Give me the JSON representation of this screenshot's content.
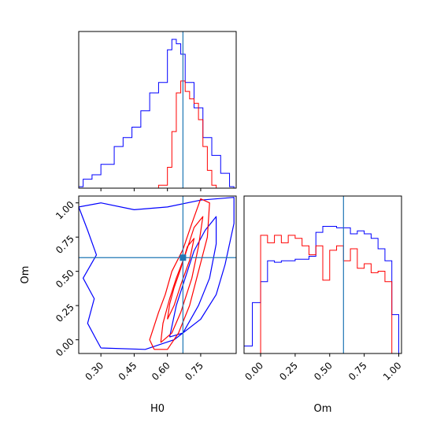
{
  "colors": {
    "posterior": "#0000ff",
    "likelihood": "#ff0000",
    "truth": "#1f77b4",
    "frame": "#000000"
  },
  "labels": {
    "x_h0": "H0",
    "x_om": "Om",
    "y_om": "Om"
  },
  "ticks": {
    "h0": [
      "0.30",
      "0.45",
      "0.60",
      "0.75"
    ],
    "om": [
      "0.00",
      "0.25",
      "0.50",
      "0.75",
      "1.00"
    ]
  },
  "chart_data": [
    {
      "type": "histogram",
      "panel": "H0 marginal",
      "xlabel": "H0",
      "xlim": [
        0.2,
        0.91
      ],
      "truth": 0.67,
      "bin_edges": [
        0.2,
        0.22,
        0.24,
        0.26,
        0.28,
        0.3,
        0.32,
        0.34,
        0.36,
        0.38,
        0.4,
        0.42,
        0.44,
        0.46,
        0.48,
        0.5,
        0.52,
        0.54,
        0.56,
        0.58,
        0.6,
        0.62,
        0.64,
        0.66,
        0.68,
        0.7,
        0.72,
        0.74,
        0.76,
        0.78,
        0.8,
        0.82,
        0.84,
        0.86,
        0.88,
        0.9
      ],
      "series": [
        {
          "color": "blue",
          "values": [
            0.01,
            0.06,
            0.06,
            0.09,
            0.09,
            0.16,
            0.16,
            0.16,
            0.28,
            0.28,
            0.34,
            0.34,
            0.41,
            0.41,
            0.52,
            0.52,
            0.64,
            0.64,
            0.71,
            0.71,
            0.93,
            1.0,
            0.97,
            0.9,
            0.71,
            0.71,
            0.54,
            0.54,
            0.34,
            0.34,
            0.22,
            0.22,
            0.1,
            0.1,
            0.01
          ]
        },
        {
          "color": "red",
          "values": [
            0,
            0,
            0,
            0,
            0,
            0,
            0,
            0,
            0,
            0,
            0,
            0,
            0,
            0,
            0,
            0,
            0,
            0,
            0.02,
            0.02,
            0.14,
            0.38,
            0.64,
            0.72,
            0.65,
            0.6,
            0.57,
            0.46,
            0.28,
            0.12,
            0.02,
            0,
            0,
            0,
            0
          ]
        }
      ]
    },
    {
      "type": "contour",
      "panel": "H0 vs Om joint",
      "xlabel": "H0",
      "ylabel": "Om",
      "xlim": [
        0.2,
        0.91
      ],
      "ylim": [
        -0.1,
        1.05
      ],
      "truth": {
        "x": 0.67,
        "y": 0.6
      },
      "series": [
        {
          "color": "blue",
          "level": "outer",
          "points": [
            [
              0.3,
              -0.06
            ],
            [
              0.5,
              -0.07
            ],
            [
              0.63,
              0.0
            ],
            [
              0.75,
              0.15
            ],
            [
              0.82,
              0.33
            ],
            [
              0.86,
              0.55
            ],
            [
              0.9,
              0.85
            ],
            [
              0.9,
              1.04
            ],
            [
              0.75,
              1.02
            ],
            [
              0.6,
              0.97
            ],
            [
              0.45,
              0.95
            ],
            [
              0.3,
              1.0
            ],
            [
              0.2,
              0.97
            ],
            [
              0.24,
              0.8
            ],
            [
              0.28,
              0.62
            ],
            [
              0.22,
              0.45
            ],
            [
              0.27,
              0.3
            ],
            [
              0.24,
              0.12
            ],
            [
              0.28,
              0.0
            ],
            [
              0.3,
              -0.06
            ]
          ]
        },
        {
          "color": "blue",
          "level": "inner",
          "points": [
            [
              0.61,
              0.02
            ],
            [
              0.67,
              0.05
            ],
            [
              0.74,
              0.25
            ],
            [
              0.79,
              0.45
            ],
            [
              0.82,
              0.7
            ],
            [
              0.82,
              0.9
            ],
            [
              0.77,
              0.8
            ],
            [
              0.72,
              0.65
            ],
            [
              0.68,
              0.45
            ],
            [
              0.64,
              0.25
            ],
            [
              0.61,
              0.02
            ]
          ]
        },
        {
          "color": "red",
          "level": "outer",
          "points": [
            [
              0.54,
              -0.07
            ],
            [
              0.6,
              -0.07
            ],
            [
              0.65,
              0.05
            ],
            [
              0.7,
              0.25
            ],
            [
              0.74,
              0.5
            ],
            [
              0.78,
              0.75
            ],
            [
              0.79,
              1.0
            ],
            [
              0.75,
              1.03
            ],
            [
              0.71,
              0.85
            ],
            [
              0.67,
              0.66
            ],
            [
              0.62,
              0.5
            ],
            [
              0.59,
              0.33
            ],
            [
              0.56,
              0.2
            ],
            [
              0.52,
              0.0
            ],
            [
              0.54,
              -0.07
            ]
          ]
        },
        {
          "color": "red",
          "level": "middle",
          "points": [
            [
              0.57,
              -0.02
            ],
            [
              0.62,
              0.05
            ],
            [
              0.66,
              0.2
            ],
            [
              0.71,
              0.45
            ],
            [
              0.74,
              0.68
            ],
            [
              0.76,
              0.9
            ],
            [
              0.72,
              0.82
            ],
            [
              0.68,
              0.62
            ],
            [
              0.64,
              0.45
            ],
            [
              0.61,
              0.3
            ],
            [
              0.58,
              0.12
            ],
            [
              0.57,
              -0.02
            ]
          ]
        },
        {
          "color": "red",
          "level": "inner",
          "points": [
            [
              0.6,
              0.15
            ],
            [
              0.63,
              0.25
            ],
            [
              0.66,
              0.4
            ],
            [
              0.7,
              0.58
            ],
            [
              0.72,
              0.74
            ],
            [
              0.69,
              0.68
            ],
            [
              0.66,
              0.52
            ],
            [
              0.63,
              0.38
            ],
            [
              0.61,
              0.26
            ],
            [
              0.6,
              0.15
            ]
          ]
        }
      ]
    },
    {
      "type": "histogram",
      "panel": "Om marginal",
      "xlabel": "Om",
      "xlim": [
        -0.12,
        1.02
      ],
      "truth": 0.6,
      "bin_edges": [
        -0.12,
        -0.06,
        0.0,
        0.05,
        0.1,
        0.15,
        0.2,
        0.25,
        0.3,
        0.35,
        0.4,
        0.45,
        0.5,
        0.55,
        0.6,
        0.65,
        0.7,
        0.75,
        0.8,
        0.85,
        0.9,
        0.95,
        1.0
      ],
      "series": [
        {
          "color": "blue",
          "values": [
            0.05,
            0.34,
            0.48,
            0.62,
            0.61,
            0.62,
            0.62,
            0.63,
            0.63,
            0.65,
            0.81,
            0.85,
            0.85,
            0.84,
            0.84,
            0.8,
            0.82,
            0.8,
            0.77,
            0.7,
            0.62,
            0.26
          ]
        },
        {
          "color": "red",
          "values": [
            0,
            0,
            0.79,
            0.74,
            0.79,
            0.74,
            0.79,
            0.77,
            0.72,
            0.66,
            0.72,
            0.49,
            0.69,
            0.72,
            0.62,
            0.7,
            0.57,
            0.6,
            0.54,
            0.55,
            0.48,
            0.0
          ]
        }
      ]
    }
  ]
}
